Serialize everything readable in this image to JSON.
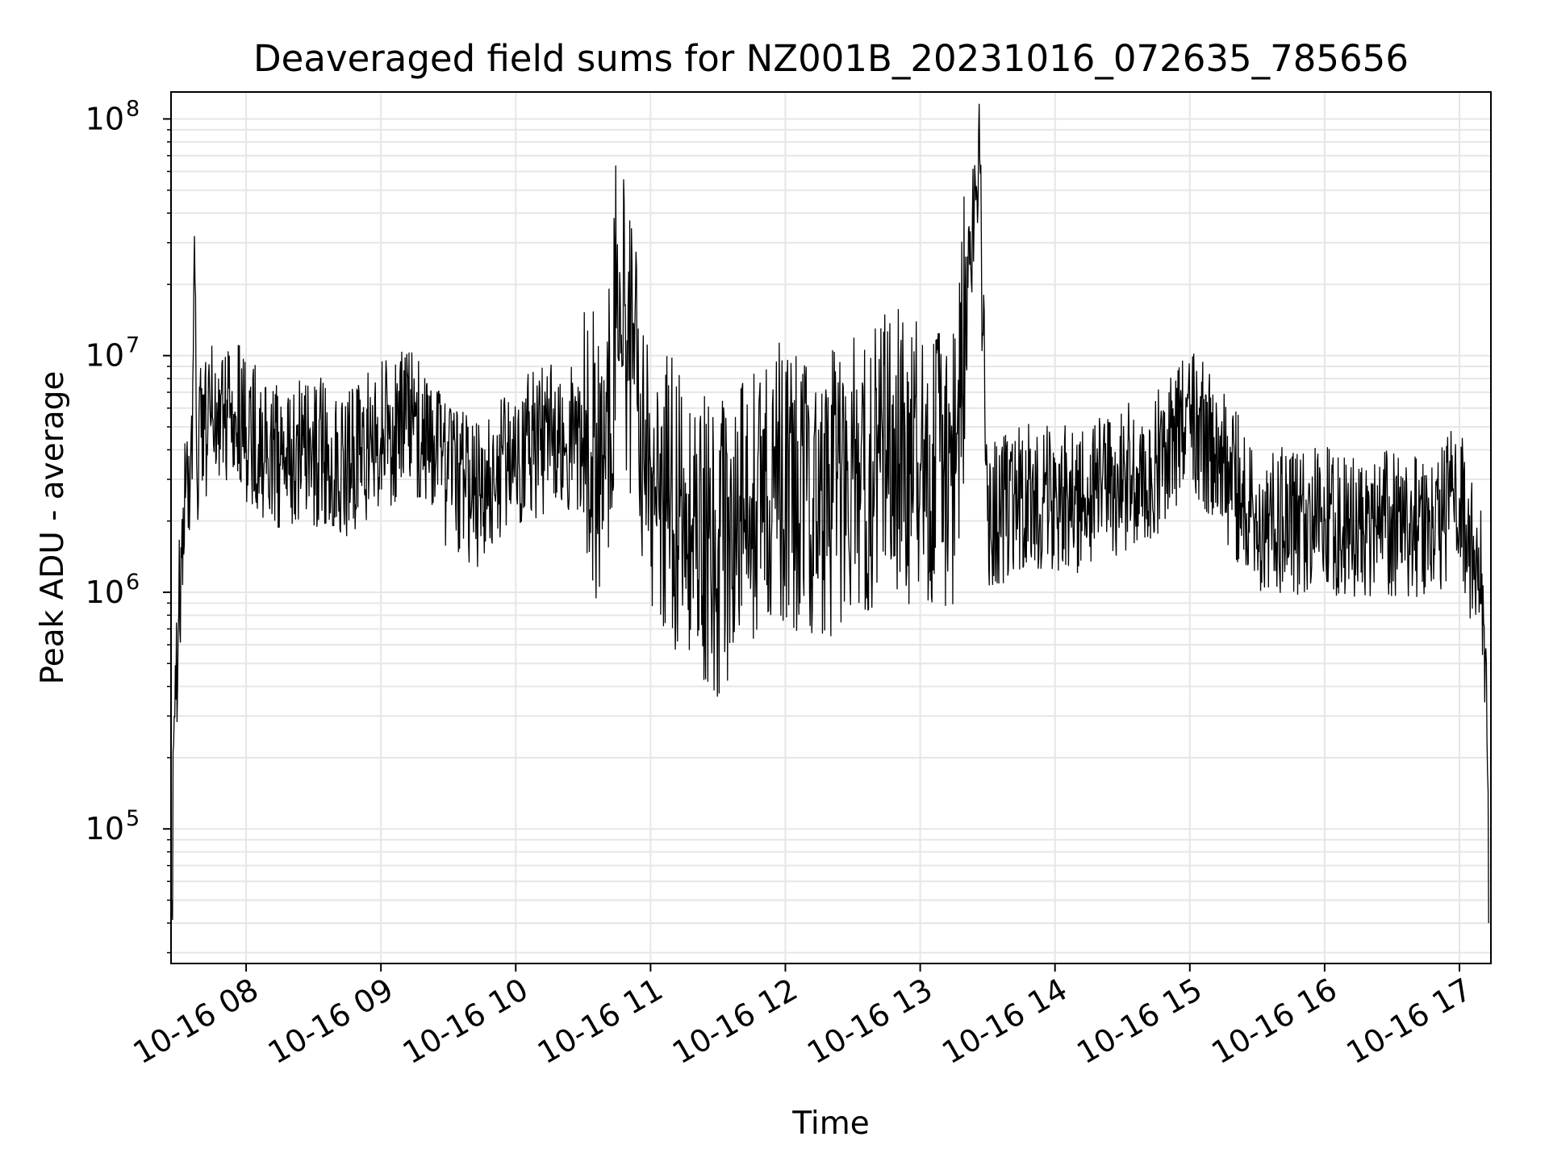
{
  "chart_data": {
    "type": "line",
    "title": "Deaveraged field sums for NZ001B_20231016_072635_785656",
    "xlabel": "Time",
    "ylabel": "Peak ADU - average",
    "yscale": "log",
    "ylim": [
      27000,
      130000000
    ],
    "xlim": [
      "2023-10-16 07:26:35",
      "2023-10-16 17:14:00"
    ],
    "grid": true,
    "line_color": "#000000",
    "x_tick_labels": [
      "10-16 08",
      "10-16 09",
      "10-16 10",
      "10-16 11",
      "10-16 12",
      "10-16 13",
      "10-16 14",
      "10-16 15",
      "10-16 16",
      "10-16 17"
    ],
    "x_ticks": [
      "2023-10-16 08:00",
      "2023-10-16 09:00",
      "2023-10-16 10:00",
      "2023-10-16 11:00",
      "2023-10-16 12:00",
      "2023-10-16 13:00",
      "2023-10-16 14:00",
      "2023-10-16 15:00",
      "2023-10-16 16:00",
      "2023-10-16 17:00"
    ],
    "y_ticks": [
      {
        "value": 100000,
        "base": "10",
        "exp": "5"
      },
      {
        "value": 1000000,
        "base": "10",
        "exp": "6"
      },
      {
        "value": 10000000,
        "base": "10",
        "exp": "7"
      },
      {
        "value": 100000000,
        "base": "10",
        "exp": "8"
      }
    ],
    "series": [
      {
        "x": [
          "2023-10-16 07:27",
          "2023-10-16 07:28",
          "2023-10-16 07:30",
          "2023-10-16 07:33",
          "2023-10-16 07:36",
          "2023-10-16 07:37",
          "2023-10-16 07:38",
          "2023-10-16 07:40",
          "2023-10-16 07:45",
          "2023-10-16 07:50",
          "2023-10-16 07:55",
          "2023-10-16 08:00",
          "2023-10-16 08:15",
          "2023-10-16 08:30",
          "2023-10-16 08:45",
          "2023-10-16 09:00",
          "2023-10-16 09:15",
          "2023-10-16 09:30",
          "2023-10-16 09:45",
          "2023-10-16 10:00",
          "2023-10-16 10:15",
          "2023-10-16 10:30",
          "2023-10-16 10:40",
          "2023-10-16 10:45",
          "2023-10-16 11:00",
          "2023-10-16 11:15",
          "2023-10-16 11:30",
          "2023-10-16 11:45",
          "2023-10-16 12:00",
          "2023-10-16 12:15",
          "2023-10-16 12:30",
          "2023-10-16 12:45",
          "2023-10-16 13:00",
          "2023-10-16 13:15",
          "2023-10-16 13:26",
          "2023-10-16 13:30",
          "2023-10-16 13:45",
          "2023-10-16 14:00",
          "2023-10-16 14:15",
          "2023-10-16 14:30",
          "2023-10-16 14:45",
          "2023-10-16 15:00",
          "2023-10-16 15:15",
          "2023-10-16 15:30",
          "2023-10-16 15:45",
          "2023-10-16 16:00",
          "2023-10-16 16:15",
          "2023-10-16 16:30",
          "2023-10-16 16:45",
          "2023-10-16 17:00",
          "2023-10-16 17:05",
          "2023-10-16 17:10",
          "2023-10-16 17:12",
          "2023-10-16 17:13"
        ],
        "y": [
          50000,
          300000,
          800000,
          2500000,
          3000000,
          32000000,
          3500000,
          4500000,
          5500000,
          6000000,
          5800000,
          5000000,
          3500000,
          4000000,
          3500000,
          4500000,
          5500000,
          3000000,
          2500000,
          4000000,
          4500000,
          4500000,
          3000000,
          20000000,
          3500000,
          2000000,
          1500000,
          2500000,
          3000000,
          2500000,
          3000000,
          4000000,
          3500000,
          3000000,
          88000000,
          2000000,
          2500000,
          2500000,
          2500000,
          3000000,
          3500000,
          5500000,
          3500000,
          2000000,
          2000000,
          2000000,
          1800000,
          2000000,
          1800000,
          2500000,
          1500000,
          1200000,
          500000,
          40000
        ]
      }
    ]
  }
}
